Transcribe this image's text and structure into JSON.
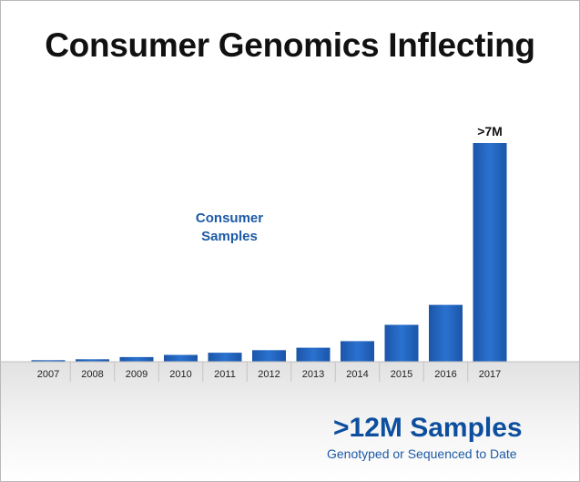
{
  "chart_data": {
    "type": "bar",
    "title": "Consumer Genomics Inflecting",
    "series_label": "Consumer Samples",
    "categories": [
      "2007",
      "2008",
      "2009",
      "2010",
      "2011",
      "2012",
      "2013",
      "2014",
      "2015",
      "2016",
      "2017"
    ],
    "values": [
      0.05,
      0.08,
      0.15,
      0.22,
      0.29,
      0.37,
      0.45,
      0.66,
      1.18,
      1.82,
      7.0
    ],
    "value_unit": "million samples",
    "data_labels": {
      "2017": ">7M"
    },
    "ylim": [
      0,
      8
    ],
    "grid": false,
    "bar_color": "#1f62bf"
  },
  "summary": {
    "headline": ">12M Samples",
    "subline": "Genotyped or Sequenced to Date"
  }
}
